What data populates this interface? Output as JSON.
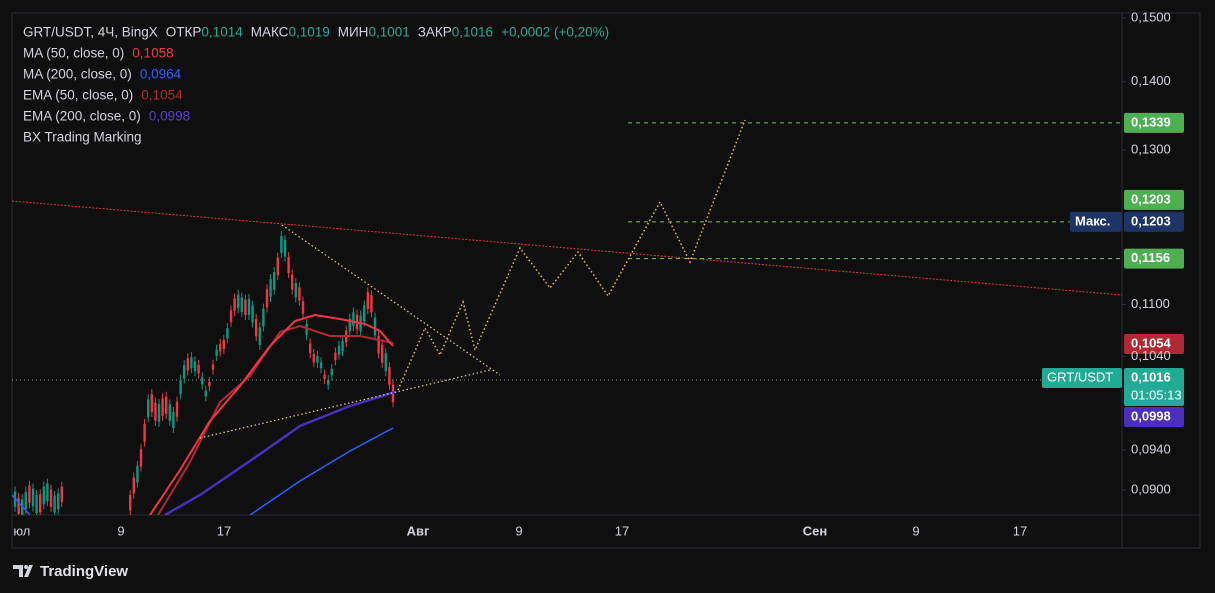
{
  "header": {
    "symbol": "GRT/USDT, 4Ч, BingX",
    "ohlc": [
      {
        "label": "ОТКР",
        "value": "0,1014"
      },
      {
        "label": "МАКС",
        "value": "0,1019"
      },
      {
        "label": "МИН",
        "value": "0,1001"
      },
      {
        "label": "ЗАКР",
        "value": "0,1016"
      }
    ],
    "change": "+0,0002 (+0,20%)"
  },
  "indicators": [
    {
      "name": "MA (50, close, 0)",
      "value": "0,1058",
      "color": "#f23645"
    },
    {
      "name": "MA (200, close, 0)",
      "value": "0,0964",
      "color": "#2962ff"
    },
    {
      "name": "EMA (50, close, 0)",
      "value": "0,1054",
      "color": "#b22833"
    },
    {
      "name": "EMA (200, close, 0)",
      "value": "0,0998",
      "color": "#5b3ed6"
    }
  ],
  "marking": "BX Trading Marking",
  "price_axis": {
    "log": true,
    "lim": [
      0.0876,
      0.1508
    ],
    "ticks": [
      {
        "value": 0.15,
        "label": "0,1500"
      },
      {
        "value": 0.14,
        "label": "0,1400"
      },
      {
        "value": 0.13,
        "label": "0,1300"
      },
      {
        "value": 0.11,
        "label": "0,1100"
      },
      {
        "value": 0.104,
        "label": "0,1040"
      },
      {
        "value": 0.094,
        "label": "0,0940"
      },
      {
        "value": 0.09,
        "label": "0,0900"
      }
    ]
  },
  "time_axis": [
    "Июл",
    "9",
    "17",
    "Авг",
    "9",
    "17",
    "Сен",
    "9",
    "17"
  ],
  "price_tags": [
    {
      "value": 0.1339,
      "label": "0,1339",
      "color": "#4caf50"
    },
    {
      "value": 0.1203,
      "label": "0,1203",
      "color": "#4caf50"
    },
    {
      "value": 0.1203,
      "label": "0,1203",
      "caption": "Макс.",
      "color": "#1c3466"
    },
    {
      "value": 0.1156,
      "label": "0,1156",
      "color": "#4caf50"
    },
    {
      "value": 0.1054,
      "label": "0,1054",
      "color": "#b22833"
    },
    {
      "value": 0.1016,
      "label": "0,1016",
      "caption": "GRT/USDT",
      "countdown": "01:05:13",
      "color": "#22ab94"
    },
    {
      "value": 0.0998,
      "label": "0,0998",
      "color": "#4a2fbd"
    }
  ],
  "footer": "TradingView"
}
